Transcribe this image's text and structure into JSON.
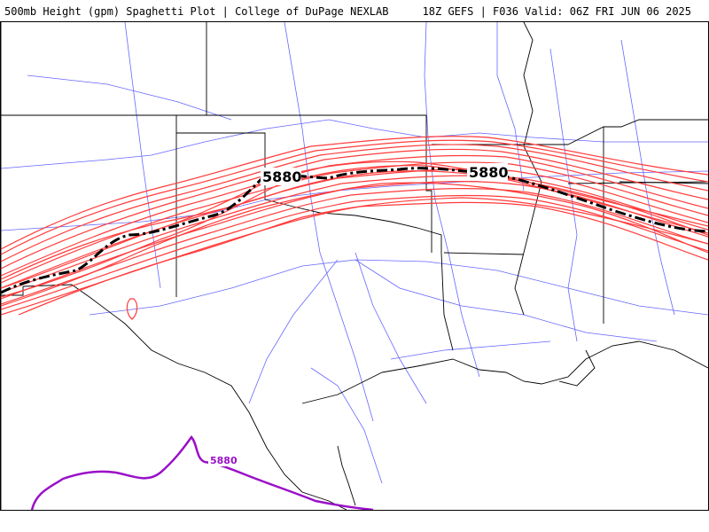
{
  "header": {
    "title_left": "500mb Height (gpm) Spaghetti Plot | College of DuPage NEXLAB",
    "title_right": "18Z GEFS | F036 Valid: 06Z FRI JUN 06 2025"
  },
  "map": {
    "contour_value_label": "5880",
    "colors": {
      "ensemble_members": "#ff3b3b",
      "ensemble_mean": "#000000",
      "secondary_contour": "#9a10c8",
      "state_borders": "#000000",
      "roads": "#6666ff"
    }
  }
}
